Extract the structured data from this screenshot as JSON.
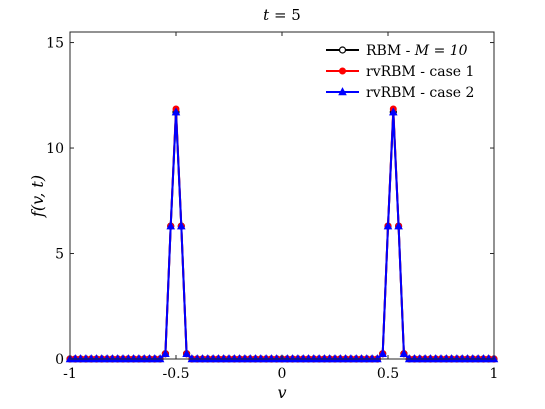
{
  "chart_data": {
    "type": "line",
    "title": "t = 5",
    "xlabel": "v",
    "ylabel": "f(v, t)",
    "xlim": [
      -1,
      1
    ],
    "ylim": [
      0,
      15.5
    ],
    "xticks": [
      -1,
      -0.5,
      0,
      0.5,
      1
    ],
    "xtick_labels": [
      "-1",
      "-0.5",
      "0",
      "0.5",
      "1"
    ],
    "yticks": [
      0,
      5,
      10,
      15
    ],
    "ytick_labels": [
      "0",
      "5",
      "10",
      "15"
    ],
    "grid": false,
    "legend_position": "top-right",
    "x": [
      -1,
      -0.975,
      -0.95,
      -0.925,
      -0.9,
      -0.875,
      -0.85,
      -0.825,
      -0.8,
      -0.775,
      -0.75,
      -0.725,
      -0.7,
      -0.675,
      -0.65,
      -0.625,
      -0.6,
      -0.575,
      -0.55,
      -0.525,
      -0.5,
      -0.475,
      -0.45,
      -0.425,
      -0.4,
      -0.375,
      -0.35,
      -0.325,
      -0.3,
      -0.275,
      -0.25,
      -0.225,
      -0.2,
      -0.175,
      -0.15,
      -0.125,
      -0.1,
      -0.075,
      -0.05,
      -0.025,
      0,
      0.025,
      0.05,
      0.075,
      0.1,
      0.125,
      0.15,
      0.175,
      0.2,
      0.225,
      0.25,
      0.275,
      0.3,
      0.325,
      0.35,
      0.375,
      0.4,
      0.425,
      0.45,
      0.475,
      0.5,
      0.525,
      0.55,
      0.575,
      0.6,
      0.625,
      0.65,
      0.675,
      0.7,
      0.725,
      0.75,
      0.775,
      0.8,
      0.825,
      0.85,
      0.875,
      0.9,
      0.925,
      0.95,
      0.975,
      1
    ],
    "series": [
      {
        "name": "RBM - M = 10",
        "legend_text": "RBM - ",
        "legend_math": "M = 10",
        "color": "#000000",
        "marker": "open-circle",
        "values": [
          0,
          0,
          0,
          0,
          0,
          0,
          0,
          0,
          0,
          0,
          0,
          0,
          0,
          0,
          0,
          0,
          0,
          0,
          0.25,
          6.3,
          11.7,
          6.3,
          0.25,
          0,
          0,
          0,
          0,
          0,
          0,
          0,
          0,
          0,
          0,
          0,
          0,
          0,
          0,
          0,
          0,
          0,
          0,
          0,
          0,
          0,
          0,
          0,
          0,
          0,
          0,
          0,
          0,
          0,
          0,
          0,
          0,
          0,
          0,
          0,
          0,
          0.25,
          6.3,
          11.7,
          6.3,
          0.25,
          0,
          0,
          0,
          0,
          0,
          0,
          0,
          0,
          0,
          0,
          0,
          0,
          0,
          0,
          0,
          0,
          0
        ]
      },
      {
        "name": "rvRBM - case 1",
        "legend_text": "rvRBM - case 1",
        "color": "#ff0000",
        "marker": "filled-circle",
        "values": [
          0,
          0,
          0,
          0,
          0,
          0,
          0,
          0,
          0,
          0,
          0,
          0,
          0,
          0,
          0,
          0,
          0,
          0,
          0.25,
          6.3,
          11.85,
          6.3,
          0.25,
          0,
          0,
          0,
          0,
          0,
          0,
          0,
          0,
          0,
          0,
          0,
          0,
          0,
          0,
          0,
          0,
          0,
          0,
          0,
          0,
          0,
          0,
          0,
          0,
          0,
          0,
          0,
          0,
          0,
          0,
          0,
          0,
          0,
          0,
          0,
          0,
          0.25,
          6.3,
          11.85,
          6.3,
          0.25,
          0,
          0,
          0,
          0,
          0,
          0,
          0,
          0,
          0,
          0,
          0,
          0,
          0,
          0,
          0,
          0,
          0
        ]
      },
      {
        "name": "rvRBM - case 2",
        "legend_text": "rvRBM - case 2",
        "color": "#0000ff",
        "marker": "triangle",
        "values": [
          0,
          0,
          0,
          0,
          0,
          0,
          0,
          0,
          0,
          0,
          0,
          0,
          0,
          0,
          0,
          0,
          0,
          0,
          0.25,
          6.3,
          11.7,
          6.3,
          0.25,
          0,
          0,
          0,
          0,
          0,
          0,
          0,
          0,
          0,
          0,
          0,
          0,
          0,
          0,
          0,
          0,
          0,
          0,
          0,
          0,
          0,
          0,
          0,
          0,
          0,
          0,
          0,
          0,
          0,
          0,
          0,
          0,
          0,
          0,
          0,
          0,
          0.25,
          6.3,
          11.7,
          6.3,
          0.25,
          0,
          0,
          0,
          0,
          0,
          0,
          0,
          0,
          0,
          0,
          0,
          0,
          0,
          0,
          0,
          0,
          0
        ]
      }
    ]
  }
}
